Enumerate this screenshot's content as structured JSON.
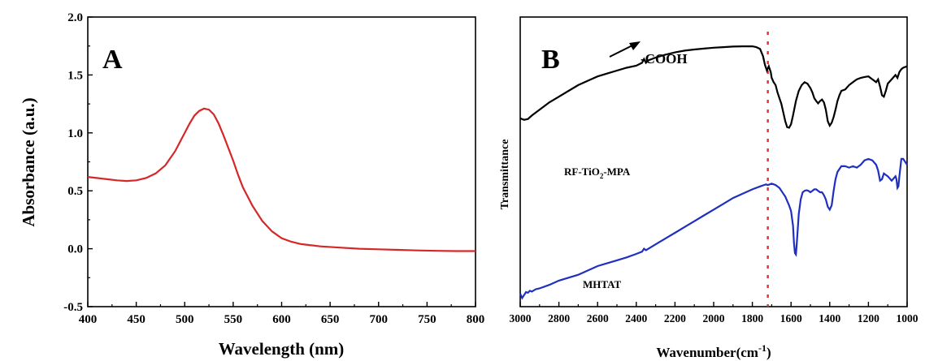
{
  "chart_data": [
    {
      "type": "line",
      "panel_label": "A",
      "xlabel": "Wavelength (nm)",
      "ylabel": "Absorbance (a.u.)",
      "xlim": [
        400,
        800
      ],
      "ylim": [
        -0.5,
        2.0
      ],
      "x_ticks": [
        "400",
        "450",
        "500",
        "550",
        "600",
        "650",
        "700",
        "750",
        "800"
      ],
      "y_ticks": [
        "-0.5",
        "0.0",
        "0.5",
        "1.0",
        "1.5",
        "2.0"
      ],
      "grid": false,
      "line_color": "#d62728",
      "series": [
        {
          "x": [
            400,
            410,
            420,
            430,
            440,
            450,
            460,
            470,
            480,
            490,
            500,
            505,
            510,
            515,
            520,
            525,
            530,
            535,
            540,
            545,
            550,
            555,
            560,
            570,
            580,
            590,
            600,
            610,
            620,
            640,
            660,
            680,
            700,
            720,
            740,
            760,
            780,
            800
          ],
          "y": [
            0.62,
            0.61,
            0.6,
            0.59,
            0.585,
            0.59,
            0.61,
            0.65,
            0.72,
            0.84,
            1.0,
            1.08,
            1.15,
            1.19,
            1.21,
            1.2,
            1.16,
            1.08,
            0.98,
            0.87,
            0.76,
            0.64,
            0.53,
            0.37,
            0.24,
            0.15,
            0.09,
            0.06,
            0.04,
            0.02,
            0.01,
            0.0,
            -0.005,
            -0.01,
            -0.015,
            -0.018,
            -0.02,
            -0.02
          ]
        }
      ]
    },
    {
      "type": "line",
      "panel_label": "B",
      "xlabel": "Wavenumber(cm",
      "xlabel_sup": "-1",
      "xlabel_end": ")",
      "ylabel": "Transmittance",
      "xlim": [
        3000,
        1000
      ],
      "x_ticks": [
        "3000",
        "2800",
        "2600",
        "2400",
        "2200",
        "2000",
        "1800",
        "1600",
        "1400",
        "1200",
        "1000"
      ],
      "y_ticks_shown": false,
      "ylim": [
        0,
        100
      ],
      "marker_line_x": 1720,
      "marker_line_color": "#e03030",
      "annotation": "-COOH",
      "series": [
        {
          "name": "RF-TiO",
          "name_sub": "2",
          "name_suffix": "-MPA",
          "color": "#000000",
          "x": [
            3000,
            2980,
            2960,
            2940,
            2900,
            2850,
            2800,
            2750,
            2700,
            2650,
            2600,
            2550,
            2500,
            2450,
            2400,
            2370,
            2360,
            2350,
            2340,
            2300,
            2250,
            2200,
            2150,
            2100,
            2050,
            2000,
            1950,
            1900,
            1850,
            1800,
            1780,
            1760,
            1745,
            1735,
            1725,
            1715,
            1705,
            1700,
            1690,
            1680,
            1670,
            1660,
            1650,
            1640,
            1630,
            1620,
            1610,
            1600,
            1590,
            1575,
            1560,
            1545,
            1530,
            1515,
            1500,
            1490,
            1480,
            1470,
            1460,
            1450,
            1440,
            1430,
            1420,
            1410,
            1400,
            1390,
            1380,
            1370,
            1360,
            1350,
            1340,
            1320,
            1300,
            1280,
            1260,
            1240,
            1220,
            1200,
            1180,
            1160,
            1150,
            1140,
            1130,
            1120,
            1110,
            1100,
            1080,
            1060,
            1050,
            1040,
            1030,
            1020,
            1000
          ],
          "y": [
            65.0,
            64.5,
            64.8,
            66.0,
            68.0,
            70.5,
            72.5,
            74.5,
            76.5,
            78.0,
            79.5,
            80.5,
            81.5,
            82.5,
            83.2,
            84.2,
            85.5,
            84.2,
            85.0,
            86.0,
            87.0,
            87.8,
            88.4,
            88.8,
            89.1,
            89.4,
            89.6,
            89.8,
            89.9,
            89.9,
            89.6,
            89.0,
            86.5,
            83.5,
            81.5,
            83.0,
            81.0,
            79.0,
            77.5,
            76.5,
            74.0,
            72.0,
            70.0,
            67.0,
            64.0,
            62.0,
            61.8,
            63.0,
            66.0,
            71.0,
            74.5,
            76.5,
            77.5,
            77.0,
            75.5,
            74.0,
            72.0,
            71.0,
            70.2,
            71.0,
            71.5,
            70.5,
            68.0,
            64.0,
            62.5,
            63.5,
            65.5,
            68.0,
            71.0,
            73.0,
            74.5,
            75.0,
            76.5,
            77.5,
            78.5,
            79.0,
            79.3,
            79.5,
            78.5,
            77.5,
            78.5,
            76.0,
            73.0,
            72.5,
            74.5,
            77.0,
            78.5,
            80.0,
            79.0,
            81.0,
            82.0,
            82.5,
            83.0
          ]
        },
        {
          "name": "MHTAT",
          "color": "#1f2fbf",
          "x": [
            3000,
            2990,
            2980,
            2970,
            2960,
            2950,
            2940,
            2920,
            2900,
            2850,
            2800,
            2750,
            2700,
            2650,
            2600,
            2550,
            2500,
            2450,
            2400,
            2370,
            2360,
            2350,
            2300,
            2250,
            2200,
            2150,
            2100,
            2050,
            2000,
            1950,
            1900,
            1850,
            1800,
            1760,
            1740,
            1730,
            1720,
            1700,
            1680,
            1660,
            1650,
            1640,
            1630,
            1620,
            1610,
            1600,
            1590,
            1585,
            1580,
            1575,
            1570,
            1560,
            1550,
            1540,
            1530,
            1520,
            1510,
            1500,
            1490,
            1480,
            1470,
            1460,
            1450,
            1440,
            1430,
            1420,
            1410,
            1400,
            1390,
            1380,
            1370,
            1360,
            1350,
            1340,
            1320,
            1300,
            1280,
            1260,
            1240,
            1220,
            1200,
            1180,
            1160,
            1150,
            1140,
            1130,
            1120,
            1110,
            1100,
            1080,
            1060,
            1055,
            1050,
            1045,
            1040,
            1030,
            1020,
            1000
          ],
          "y": [
            4.5,
            3.0,
            4.0,
            5.0,
            4.8,
            5.5,
            5.2,
            6.0,
            6.3,
            7.5,
            9.0,
            10.0,
            11.0,
            12.5,
            14.0,
            15.0,
            16.0,
            17.0,
            18.2,
            19.0,
            20.0,
            19.5,
            21.5,
            23.5,
            25.5,
            27.5,
            29.5,
            31.5,
            33.5,
            35.5,
            37.5,
            39.0,
            40.5,
            41.5,
            42.0,
            42.2,
            42.0,
            42.5,
            42.0,
            41.0,
            40.0,
            39.0,
            38.0,
            36.5,
            35.0,
            33.0,
            28.0,
            22.0,
            18.5,
            18.0,
            22.0,
            32.0,
            37.0,
            39.5,
            40.0,
            40.2,
            40.0,
            39.5,
            40.0,
            40.5,
            40.5,
            40.0,
            39.5,
            39.5,
            38.5,
            37.0,
            34.5,
            33.5,
            35.0,
            40.0,
            44.0,
            46.5,
            47.5,
            48.5,
            48.5,
            48.0,
            48.5,
            48.0,
            49.0,
            50.5,
            51.0,
            50.5,
            49.0,
            47.0,
            43.5,
            44.0,
            46.0,
            45.5,
            45.0,
            43.5,
            45.0,
            44.0,
            41.0,
            41.5,
            45.0,
            51.0,
            51.0,
            49.0
          ]
        }
      ]
    }
  ]
}
